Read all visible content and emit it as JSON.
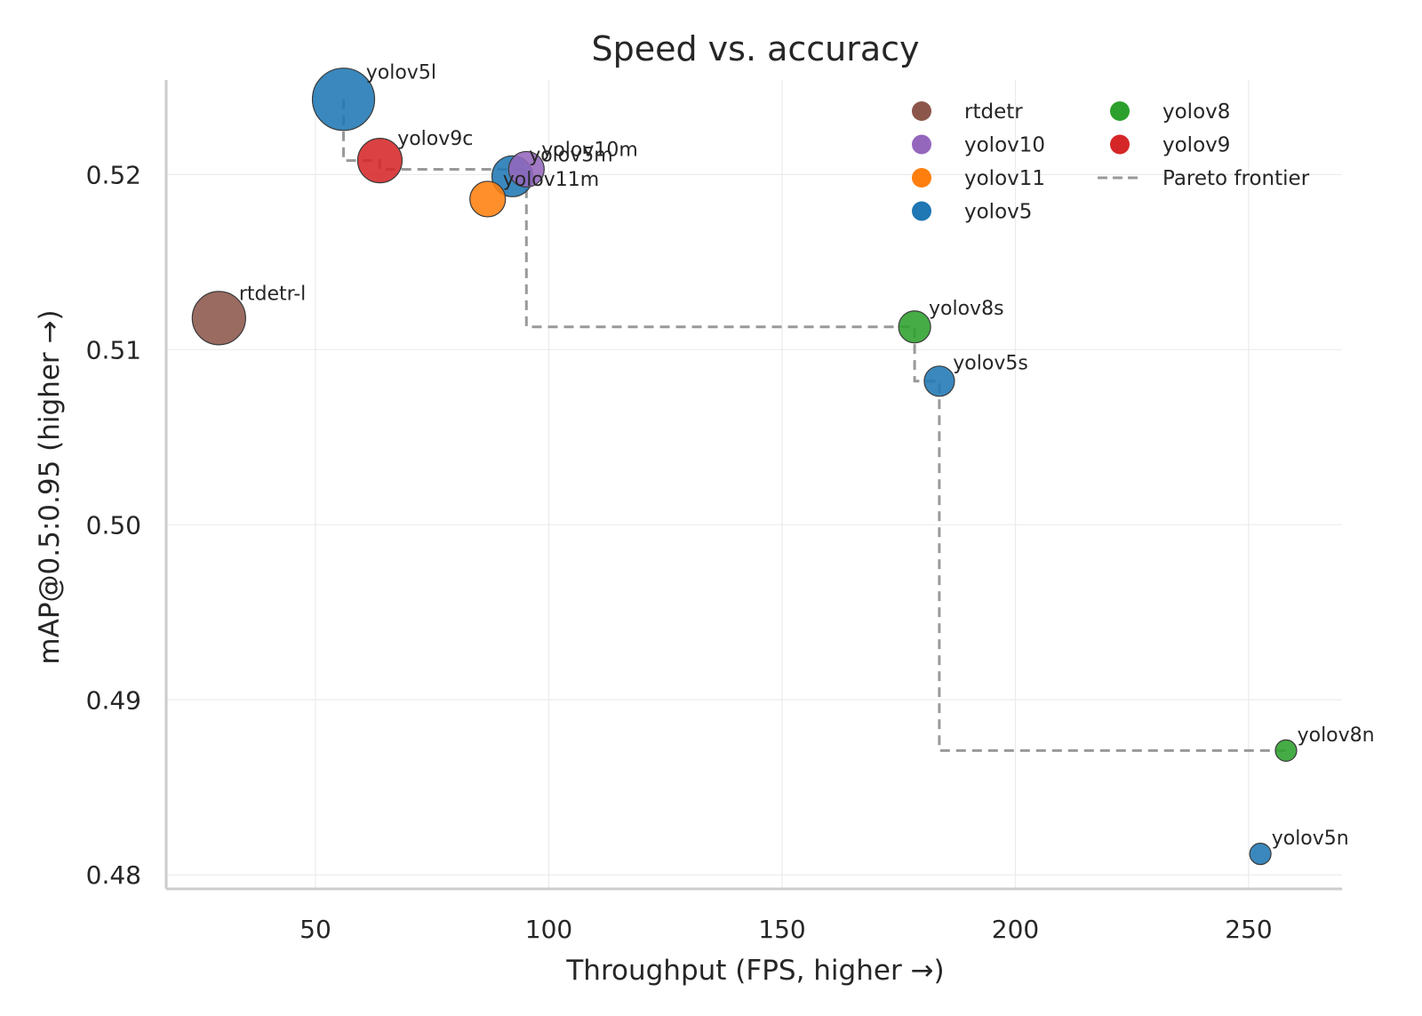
{
  "chart_data": {
    "type": "scatter",
    "title": "Speed vs. accuracy",
    "xlabel": "Throughput (FPS, higher →)",
    "ylabel": "mAP@0.5:0.95 (higher →)",
    "xlim": [
      18,
      270
    ],
    "ylim": [
      0.4792,
      0.5254
    ],
    "xticks": [
      50,
      100,
      150,
      200,
      250
    ],
    "yticks": [
      0.48,
      0.49,
      0.5,
      0.51,
      0.52
    ],
    "ytick_labels": [
      "0.48",
      "0.49",
      "0.50",
      "0.51",
      "0.52"
    ],
    "grid": true,
    "legend_position": "top-right",
    "series": [
      {
        "name": "rtdetr",
        "color": "#8c564b",
        "points": [
          {
            "label": "rtdetr-l",
            "x": 29.3,
            "y": 0.5118,
            "size": 60
          }
        ]
      },
      {
        "name": "yolov10",
        "color": "#9467bd",
        "points": [
          {
            "label": "yolov10m",
            "x": 95.2,
            "y": 0.5203,
            "size": 40
          }
        ]
      },
      {
        "name": "yolov11",
        "color": "#ff7f0e",
        "points": [
          {
            "label": "yolov11m",
            "x": 86.9,
            "y": 0.5186,
            "size": 40
          }
        ]
      },
      {
        "name": "yolov5",
        "color": "#1f77b4",
        "points": [
          {
            "label": "yolov5l",
            "x": 56.0,
            "y": 0.5243,
            "size": 70
          },
          {
            "label": "yolov5m",
            "x": 92.2,
            "y": 0.5199,
            "size": 46
          },
          {
            "label": "yolov5s",
            "x": 183.7,
            "y": 0.5082,
            "size": 34
          },
          {
            "label": "yolov5n",
            "x": 252.5,
            "y": 0.4812,
            "size": 24
          }
        ]
      },
      {
        "name": "yolov8",
        "color": "#2ca02c",
        "points": [
          {
            "label": "yolov8s",
            "x": 178.4,
            "y": 0.5113,
            "size": 36
          },
          {
            "label": "yolov8n",
            "x": 258.0,
            "y": 0.4871,
            "size": 24
          }
        ]
      },
      {
        "name": "yolov9",
        "color": "#d62728",
        "points": [
          {
            "label": "yolov9c",
            "x": 63.8,
            "y": 0.5208,
            "size": 50
          }
        ]
      }
    ],
    "pareto_frontier": {
      "name": "Pareto frontier",
      "color": "#999999",
      "x": [
        56.0,
        56.0,
        63.8,
        63.8,
        95.2,
        95.2,
        178.4,
        178.4,
        183.7,
        183.7,
        258.0
      ],
      "y": [
        0.5243,
        0.5208,
        0.5208,
        0.5203,
        0.5203,
        0.5113,
        0.5113,
        0.5082,
        0.5082,
        0.4871,
        0.4871
      ]
    },
    "legend": [
      {
        "label": "rtdetr",
        "kind": "marker",
        "color": "#8c564b"
      },
      {
        "label": "yolov10",
        "kind": "marker",
        "color": "#9467bd"
      },
      {
        "label": "yolov11",
        "kind": "marker",
        "color": "#ff7f0e"
      },
      {
        "label": "yolov5",
        "kind": "marker",
        "color": "#1f77b4"
      },
      {
        "label": "yolov8",
        "kind": "marker",
        "color": "#2ca02c"
      },
      {
        "label": "yolov9",
        "kind": "marker",
        "color": "#d62728"
      },
      {
        "label": "Pareto frontier",
        "kind": "line",
        "color": "#999999"
      }
    ]
  }
}
